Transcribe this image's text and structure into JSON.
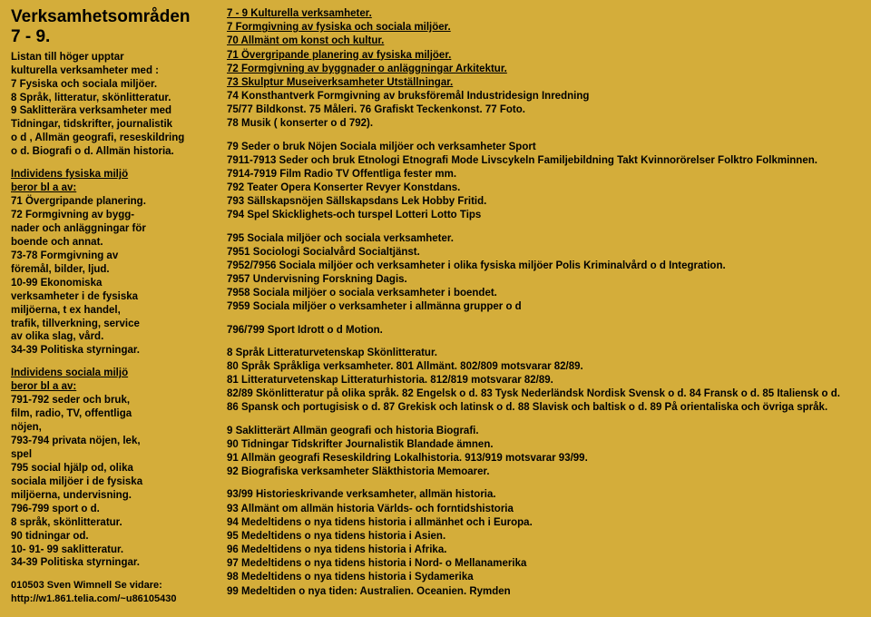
{
  "left": {
    "title1": "Verksamhetsområden",
    "title2": "7 - 9.",
    "p1a": "Listan till höger upptar",
    "p1b": "kulturella verksamheter med :",
    "p1c": "7 Fysiska och sociala miljöer.",
    "p1d": "8 Språk, litteratur, skönlitteratur.",
    "p1e": "9 Saklitterära verksamheter med",
    "p1f": "Tidningar, tidskrifter, journalistik",
    "p1g": "o d , Allmän geografi, reseskildring",
    "p1h": "o d. Biografi o d. Allmän historia.",
    "h2a": "Individens fysiska miljö",
    "h2b": "beror bl a av:",
    "p2a": "71 Övergripande planering.",
    "p2b": "72 Formgivning av bygg-",
    "p2c": "nader och anläggningar för",
    "p2d": "boende och annat.",
    "p2e": "73-78 Formgivning av",
    "p2f": "föremål, bilder, ljud.",
    "p2g": "10-99 Ekonomiska",
    "p2h": "verksamheter i de fysiska",
    "p2i": "miljöerna, t ex handel,",
    "p2j": "trafik, tillverkning, service",
    "p2k": "av olika slag, vård.",
    "p2l": "34-39 Politiska styrningar.",
    "h3a": "Individens sociala miljö",
    "h3b": "beror bl a av:",
    "p3a": "791-792 seder och bruk,",
    "p3b": "film, radio, TV, offentliga",
    "p3c": "nöjen,",
    "p3d": "793-794 privata nöjen, lek,",
    "p3e": "spel",
    "p3f": "795 social hjälp od, olika",
    "p3g": "sociala miljöer i de fysiska",
    "p3h": "miljöerna, undervisning.",
    "p3i": "796-799 sport o d.",
    "p3j": "8 språk, skönlitteratur.",
    "p3k": "90 tidningar od.",
    "p3l": "10- 91- 99 saklitteratur.",
    "p3m": "34-39 Politiska styrningar.",
    "foot1": "010503 Sven Wimnell  Se vidare:",
    "foot2": "http://w1.861.telia.com/~u86105430"
  },
  "right": {
    "s1a": "7 - 9 Kulturella verksamheter.",
    "s1b": "7 Formgivning av fysiska och sociala miljöer.",
    "s1c": "70 Allmänt om konst och kultur.",
    "s1d": "71 Övergripande planering av fysiska miljöer.",
    "s1e": "72 Formgivning av byggnader o anläggningar  Arkitektur.",
    "s1f": "73 Skulptur  Museiverksamheter Utställningar.",
    "s1g": "74 Konsthantverk Formgivning av bruksföremål Industridesign Inredning",
    "s1h": "75/77 Bildkonst. 75 Måleri.  76 Grafiskt Teckenkonst.  77 Foto.",
    "s1i": "78 Musik ( konserter o d 792).",
    "s2a": "79 Seder o bruk  Nöjen Sociala miljöer och  verksamheter Sport",
    "s2b": "7911-7913 Seder och bruk Etnologi  Etnografi Mode Livscykeln Familjebildning Takt Kvinnorörelser Folktro Folkminnen.",
    "s2c": "7914-7919 Film  Radio  TV  Offentliga fester mm.",
    "s2d": "792 Teater Opera  Konserter Revyer Konstdans.",
    "s2e": "793 Sällskapsnöjen Sällskapsdans Lek Hobby Fritid.",
    "s2f": "794 Spel  Skicklighets-och turspel Lotteri Lotto Tips",
    "s3a": "795 Sociala miljöer och sociala verksamheter.",
    "s3b": "7951 Sociologi  Socialvård Socialtjänst.",
    "s3c": "7952/7956 Sociala miljöer och verksamheter i olika fysiska miljöer Polis Kriminalvård o d  Integration.",
    "s3d": "7957 Undervisning Forskning Dagis.",
    "s3e": "7958 Sociala miljöer o sociala verksamheter i boendet.",
    "s3f": "7959 Sociala miljöer o verksamheter i allmänna grupper o d",
    "s4a": "796/799 Sport Idrott o d  Motion.",
    "s5a": "8 Språk  Litteraturvetenskap Skönlitteratur.",
    "s5b": "80 Språk Språkliga verksamheter.  801 Allmänt.  802/809 motsvarar 82/89.",
    "s5c": "81 Litteraturvetenskap Litteraturhistoria. 812/819 motsvarar 82/89.",
    "s5d": "82/89 Skönlitteratur på olika språk.  82 Engelsk o d.   83 Tysk Nederländsk Nordisk Svensk o d.  84 Fransk o d.  85 Italiensk o d.",
    "s5e": "86 Spansk och portugisisk o d.  87 Grekisk och latinsk o d.  88 Slavisk och baltisk o d. 89 På orientaliska och övriga språk.",
    "s6a": "9 Saklitterärt Allmän geografi och historia Biografi.",
    "s6b": "90 Tidningar Tidskrifter Journalistik  Blandade ämnen.",
    "s6c": "91 Allmän geografi  Reseskildring Lokalhistoria.  913/919 motsvarar 93/99.",
    "s6d": "92 Biografiska verksamheter Släkthistoria Memoarer.",
    "s7a": "93/99 Historieskrivande verksamheter, allmän historia.",
    "s7b": "93 Allmänt om allmän historia  Världs- och forntidshistoria",
    "s7c": "94 Medeltidens o nya tidens historia i allmänhet och i Europa.",
    "s7d": "95 Medeltidens o nya tidens historia i Asien.",
    "s7e": "96 Medeltidens o nya tidens historia i Afrika.",
    "s7f": "97 Medeltidens o nya tidens historia i Nord- o Mellanamerika",
    "s7g": "98 Medeltidens o nya tidens historia i Sydamerika",
    "s7h": "99 Medeltiden o nya tiden: Australien.  Oceanien. Rymden"
  }
}
